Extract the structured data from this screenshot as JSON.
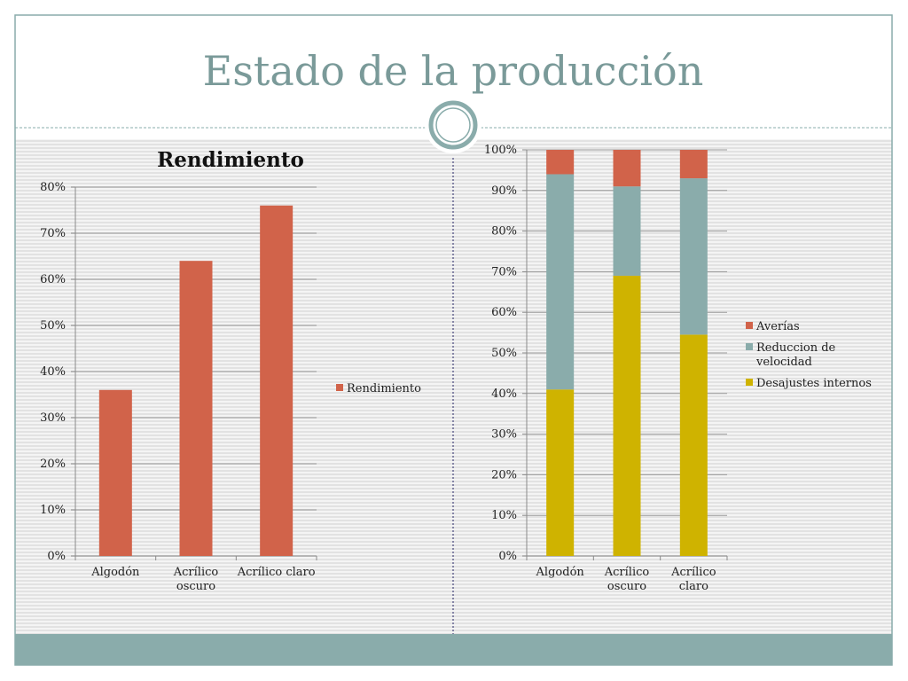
{
  "slide": {
    "title": "Estado de la producción"
  },
  "colors": {
    "title": "#7a9a99",
    "accent_bar": "#8aacab",
    "border": "#8aacab",
    "rendimiento": "#d1634a",
    "averias": "#d1634a",
    "reduccion": "#8aacab",
    "desajustes": "#cfb300",
    "axis": "#8a8a8a",
    "gridline": "#9a9a9a",
    "stripe_a": "#f2f2f2",
    "stripe_b": "#e0e0e0",
    "divider": "#2a2a6a"
  },
  "chart_data": [
    {
      "type": "bar",
      "title": "Rendimiento",
      "categories": [
        "Algodón",
        "Acrílico oscuro",
        "Acrílico claro"
      ],
      "category_lines": [
        [
          "Algodón"
        ],
        [
          "Acrílico",
          "oscuro"
        ],
        [
          "Acrílico claro"
        ]
      ],
      "series": [
        {
          "name": "Rendimiento",
          "values": [
            36,
            64,
            76
          ]
        }
      ],
      "ylim": [
        0,
        80
      ],
      "yticks": [
        0,
        10,
        20,
        30,
        40,
        50,
        60,
        70,
        80
      ],
      "ytick_labels": [
        "0%",
        "10%",
        "20%",
        "30%",
        "40%",
        "50%",
        "60%",
        "70%",
        "80%"
      ],
      "grid": true,
      "legend": "right"
    },
    {
      "type": "bar",
      "stacked": true,
      "title": "",
      "categories": [
        "Algodón",
        "Acrílico oscuro",
        "Acrílico claro"
      ],
      "category_lines": [
        [
          "Algodón"
        ],
        [
          "Acrílico",
          "oscuro"
        ],
        [
          "Acrílico",
          "claro"
        ]
      ],
      "series": [
        {
          "name": "Desajustes internos",
          "values": [
            41,
            69,
            54.5
          ]
        },
        {
          "name": "Reduccion de velocidad",
          "legend_lines": [
            "Reduccion de",
            "velocidad"
          ],
          "values": [
            53,
            22,
            38.5
          ]
        },
        {
          "name": "Averías",
          "values": [
            6,
            9,
            7
          ]
        }
      ],
      "ylim": [
        0,
        100
      ],
      "yticks": [
        0,
        10,
        20,
        30,
        40,
        50,
        60,
        70,
        80,
        90,
        100
      ],
      "ytick_labels": [
        "0%",
        "10%",
        "20%",
        "30%",
        "40%",
        "50%",
        "60%",
        "70%",
        "80%",
        "90%",
        "100%"
      ],
      "grid": true,
      "legend": "right"
    }
  ]
}
